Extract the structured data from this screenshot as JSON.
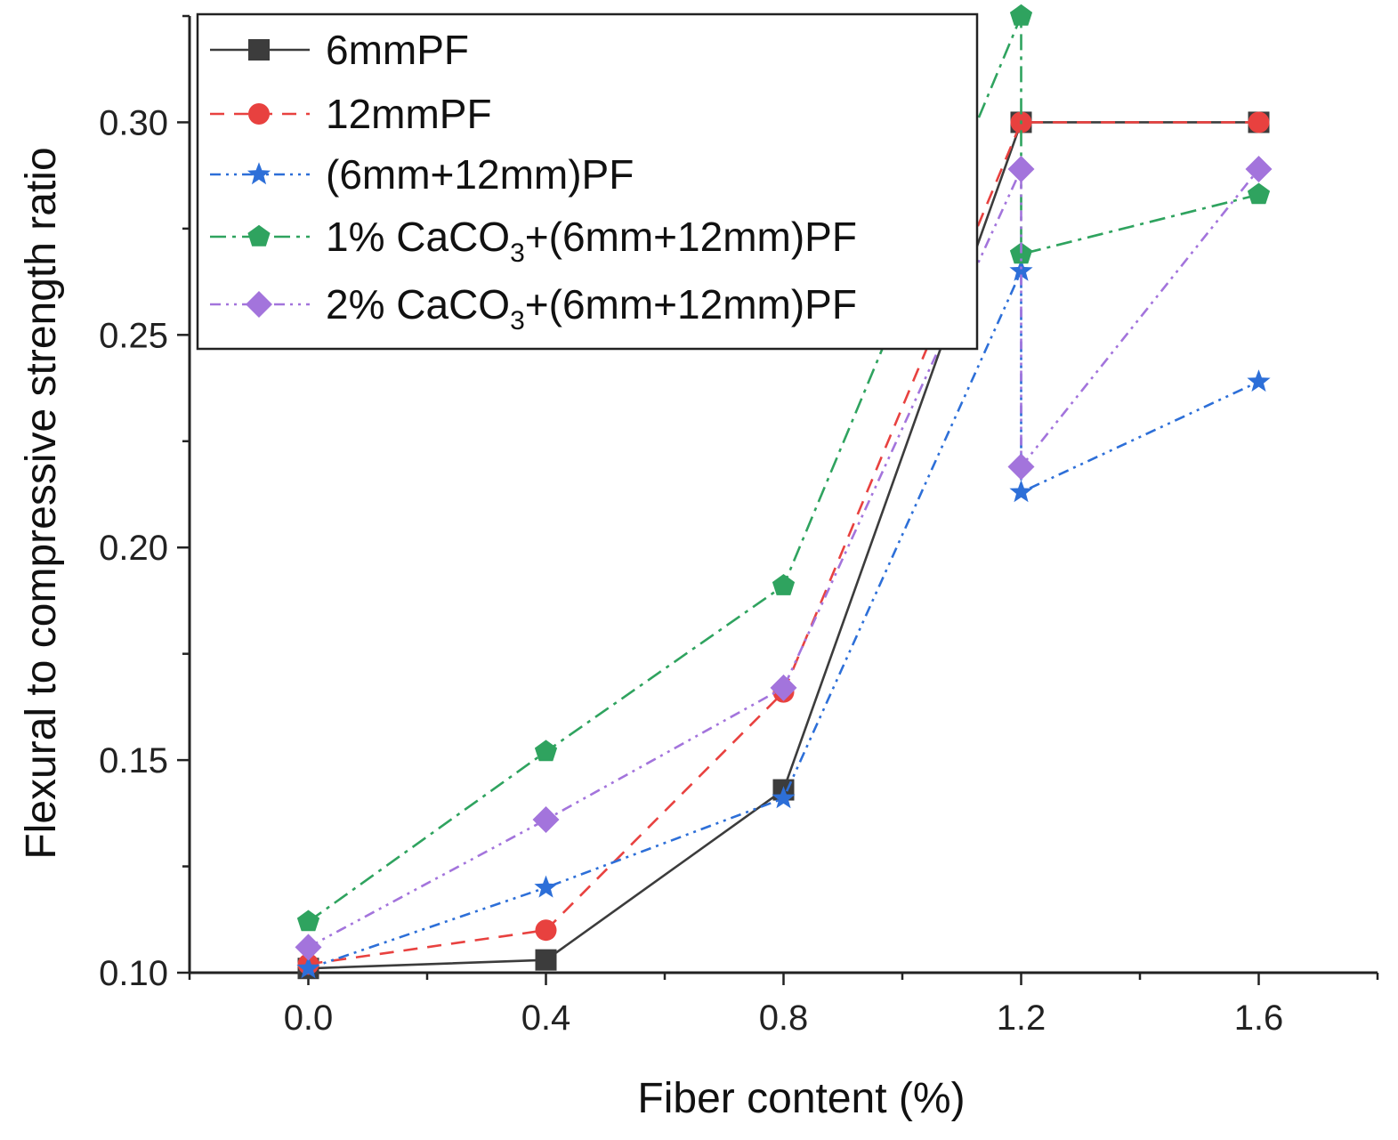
{
  "chart_data": {
    "type": "line",
    "title": "",
    "xlabel": "Fiber content (%)",
    "ylabel": "Flexural to compressive strength ratio",
    "xlim": [
      -0.2,
      1.8
    ],
    "ylim": [
      0.1,
      0.325
    ],
    "xticks": [
      0.0,
      0.4,
      0.8,
      1.2,
      1.6
    ],
    "xtick_labels": [
      "0.0",
      "0.4",
      "0.8",
      "1.2",
      "1.6"
    ],
    "yticks": [
      0.1,
      0.15,
      0.2,
      0.25,
      0.3
    ],
    "ytick_labels": [
      "0.10",
      "0.15",
      "0.20",
      "0.25",
      "0.30"
    ],
    "legend_position": "top-left",
    "series": [
      {
        "name": "6mmPF",
        "legend": {
          "pre": "6mmPF",
          "sub": "",
          "post": ""
        },
        "color": "#3c3c3c",
        "dash": "",
        "marker": "square",
        "x": [
          0.0,
          0.4,
          0.8,
          1.2,
          1.6
        ],
        "y": [
          0.101,
          0.103,
          0.143,
          0.3,
          0.3
        ]
      },
      {
        "name": "12mmPF",
        "legend": {
          "pre": "12mmPF",
          "sub": "",
          "post": ""
        },
        "color": "#e8413f",
        "dash": "16,11",
        "marker": "circle",
        "x": [
          0.0,
          0.4,
          0.8,
          1.2,
          1.6
        ],
        "y": [
          0.102,
          0.11,
          0.166,
          0.3,
          0.3
        ]
      },
      {
        "name": "(6mm+12mm)PF",
        "legend": {
          "pre": "(6mm+12mm)PF",
          "sub": "",
          "post": ""
        },
        "color": "#2d6fd8",
        "dash": "12,6,3,6,3,6",
        "marker": "star",
        "x": [
          0.0,
          0.4,
          0.8,
          1.2,
          1.2,
          1.6
        ],
        "y": [
          0.101,
          0.12,
          0.141,
          0.265,
          0.213,
          0.239
        ]
      },
      {
        "name": "1% CaCO3+(6mm+12mm)PF",
        "legend": {
          "pre": "1% CaCO",
          "sub": "3",
          "post": "+(6mm+12mm)PF"
        },
        "color": "#2fa35f",
        "dash": "18,7,4,7",
        "marker": "pentagon",
        "x": [
          0.0,
          0.4,
          0.8,
          1.2,
          1.2,
          1.6
        ],
        "y": [
          0.112,
          0.152,
          0.191,
          0.325,
          0.269,
          0.283
        ]
      },
      {
        "name": "2% CaCO3+(6mm+12mm)PF",
        "legend": {
          "pre": "2% CaCO",
          "sub": "3",
          "post": "+(6mm+12mm)PF"
        },
        "color": "#a374dc",
        "dash": "12,6,3,6,3,6",
        "marker": "diamond",
        "x": [
          0.0,
          0.4,
          0.8,
          1.2,
          1.2,
          1.6
        ],
        "y": [
          0.106,
          0.136,
          0.167,
          0.289,
          0.219,
          0.289
        ]
      }
    ]
  }
}
